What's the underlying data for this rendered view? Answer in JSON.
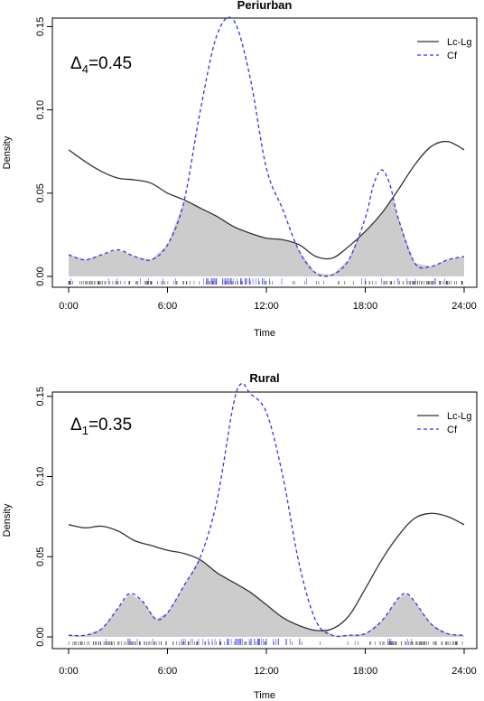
{
  "chart_data": [
    {
      "type": "line",
      "title": "Periurban",
      "xlabel": "Time",
      "ylabel": "Density",
      "overlap_label": {
        "symbol": "Δ",
        "sub": "4",
        "value": "=0.45"
      },
      "xlim": [
        0,
        24
      ],
      "ylim": [
        0,
        0.16
      ],
      "xticks": [
        {
          "value": 0,
          "label": "0:00"
        },
        {
          "value": 6,
          "label": "6:00"
        },
        {
          "value": 12,
          "label": "12:00"
        },
        {
          "value": 18,
          "label": "18:00"
        },
        {
          "value": 24,
          "label": "24:00"
        }
      ],
      "yticks": [
        {
          "value": 0,
          "label": "0.00"
        },
        {
          "value": 0.05,
          "label": "0.05"
        },
        {
          "value": 0.1,
          "label": "0.10"
        },
        {
          "value": 0.15,
          "label": "0.15"
        }
      ],
      "legend": "top-right",
      "overlap_fill_color": "#cccccc",
      "series": [
        {
          "name": "Lc-Lg",
          "color": "#333333",
          "dash": "solid",
          "x": [
            0,
            1,
            2,
            3,
            4,
            5,
            6,
            7,
            8,
            9,
            10,
            11,
            12,
            13,
            14,
            15,
            16,
            17,
            18,
            19,
            20,
            21,
            22,
            23,
            24
          ],
          "y": [
            0.076,
            0.069,
            0.063,
            0.059,
            0.058,
            0.056,
            0.05,
            0.046,
            0.041,
            0.036,
            0.03,
            0.026,
            0.023,
            0.022,
            0.019,
            0.012,
            0.011,
            0.018,
            0.027,
            0.038,
            0.052,
            0.067,
            0.078,
            0.081,
            0.076
          ]
        },
        {
          "name": "Cf",
          "color": "#3333ee",
          "dash": "dashed",
          "x": [
            0,
            1,
            2,
            3,
            4,
            5,
            6,
            7,
            8,
            9,
            10,
            11,
            12,
            13,
            14,
            15,
            16,
            17,
            18,
            18.5,
            19,
            19.5,
            20,
            21,
            22,
            23,
            24
          ],
          "y": [
            0.013,
            0.01,
            0.013,
            0.016,
            0.012,
            0.01,
            0.019,
            0.045,
            0.1,
            0.145,
            0.154,
            0.12,
            0.065,
            0.04,
            0.015,
            0.002,
            0.001,
            0.01,
            0.035,
            0.055,
            0.064,
            0.055,
            0.035,
            0.008,
            0.006,
            0.01,
            0.012
          ]
        }
      ]
    },
    {
      "type": "line",
      "title": "Rural",
      "xlabel": "Time",
      "ylabel": "Density",
      "overlap_label": {
        "symbol": "Δ",
        "sub": "1",
        "value": "=0.35"
      },
      "xlim": [
        0,
        24
      ],
      "ylim": [
        0,
        0.16
      ],
      "xticks": [
        {
          "value": 0,
          "label": "0:00"
        },
        {
          "value": 6,
          "label": "6:00"
        },
        {
          "value": 12,
          "label": "12:00"
        },
        {
          "value": 18,
          "label": "18:00"
        },
        {
          "value": 24,
          "label": "24:00"
        }
      ],
      "yticks": [
        {
          "value": 0,
          "label": "0.00"
        },
        {
          "value": 0.05,
          "label": "0.05"
        },
        {
          "value": 0.1,
          "label": "0.10"
        },
        {
          "value": 0.15,
          "label": "0.15"
        }
      ],
      "legend": "top-right",
      "overlap_fill_color": "#cccccc",
      "series": [
        {
          "name": "Lc-Lg",
          "color": "#333333",
          "dash": "solid",
          "x": [
            0,
            1,
            2,
            3,
            4,
            5,
            6,
            7,
            8,
            9,
            10,
            11,
            12,
            13,
            14,
            15,
            16,
            17,
            18,
            19,
            20,
            21,
            22,
            23,
            24
          ],
          "y": [
            0.07,
            0.068,
            0.069,
            0.066,
            0.06,
            0.057,
            0.054,
            0.052,
            0.048,
            0.04,
            0.034,
            0.028,
            0.02,
            0.012,
            0.007,
            0.004,
            0.005,
            0.013,
            0.03,
            0.048,
            0.063,
            0.074,
            0.077,
            0.075,
            0.07
          ]
        },
        {
          "name": "Cf",
          "color": "#3333ee",
          "dash": "dashed",
          "x": [
            0,
            1,
            2,
            3,
            3.7,
            4.5,
            5.3,
            6,
            7,
            8,
            9,
            10,
            10.5,
            11,
            12,
            13,
            14,
            15,
            16,
            17,
            18,
            19,
            20,
            20.5,
            21,
            22,
            23,
            24
          ],
          "y": [
            0.001,
            0.001,
            0.005,
            0.018,
            0.027,
            0.022,
            0.011,
            0.015,
            0.032,
            0.05,
            0.085,
            0.145,
            0.158,
            0.152,
            0.14,
            0.1,
            0.045,
            0.01,
            0.001,
            0.001,
            0.002,
            0.01,
            0.024,
            0.027,
            0.022,
            0.008,
            0.002,
            0.001
          ]
        }
      ]
    }
  ]
}
